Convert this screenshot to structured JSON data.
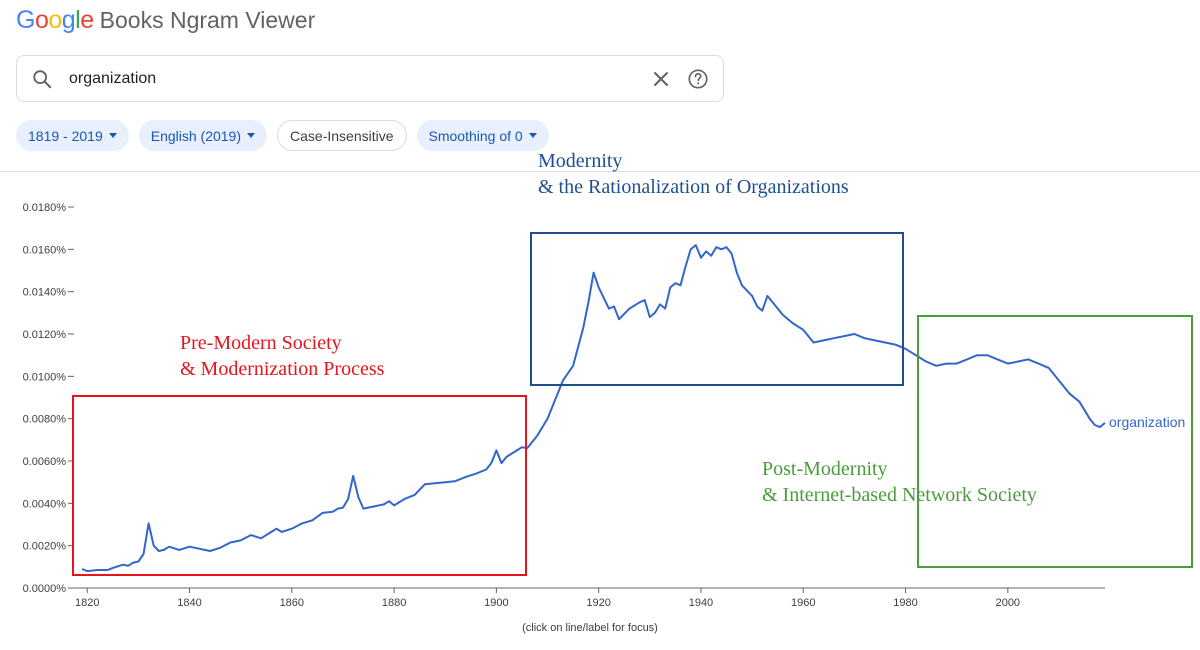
{
  "logo": {
    "letters": [
      {
        "ch": "G",
        "color": "#4285F4"
      },
      {
        "ch": "o",
        "color": "#EA4335"
      },
      {
        "ch": "o",
        "color": "#FBBC05"
      },
      {
        "ch": "g",
        "color": "#4285F4"
      },
      {
        "ch": "l",
        "color": "#34A853"
      },
      {
        "ch": "e",
        "color": "#EA4335"
      }
    ],
    "rest": "Books Ngram Viewer"
  },
  "search": {
    "value": "organization",
    "icon": "search-icon",
    "clear_icon": "close-icon",
    "help_icon": "help-icon"
  },
  "filters": {
    "year_range": "1819 - 2019",
    "corpus": "English (2019)",
    "case": "Case-Insensitive",
    "smoothing": "Smoothing of 0"
  },
  "chart_note": "(click on line/label for focus)",
  "chart_data": {
    "type": "line",
    "xlim": [
      1818,
      2019
    ],
    "ylim": [
      0,
      0.018
    ],
    "x_ticks": [
      1820,
      1840,
      1860,
      1880,
      1900,
      1920,
      1940,
      1960,
      1980,
      2000
    ],
    "y_ticks": [
      {
        "value": 0,
        "label": "0.0000%"
      },
      {
        "value": 0.002,
        "label": "0.0020%"
      },
      {
        "value": 0.004,
        "label": "0.0040%"
      },
      {
        "value": 0.006,
        "label": "0.0060%"
      },
      {
        "value": 0.008,
        "label": "0.0080%"
      },
      {
        "value": 0.01,
        "label": "0.0100%"
      },
      {
        "value": 0.012,
        "label": "0.0120%"
      },
      {
        "value": 0.014,
        "label": "0.0140%"
      },
      {
        "value": 0.016,
        "label": "0.0160%"
      },
      {
        "value": 0.018,
        "label": "0.0180%"
      }
    ],
    "series": [
      {
        "name": "organization",
        "color": "#3366cc",
        "points": [
          [
            1819,
            0.0009
          ],
          [
            1820,
            0.0008
          ],
          [
            1822,
            0.00085
          ],
          [
            1824,
            0.00085
          ],
          [
            1825,
            0.00095
          ],
          [
            1827,
            0.0011
          ],
          [
            1828,
            0.00105
          ],
          [
            1829,
            0.0012
          ],
          [
            1830,
            0.00125
          ],
          [
            1831,
            0.0016
          ],
          [
            1832,
            0.00305
          ],
          [
            1833,
            0.002
          ],
          [
            1834,
            0.00175
          ],
          [
            1835,
            0.0018
          ],
          [
            1836,
            0.00195
          ],
          [
            1838,
            0.0018
          ],
          [
            1840,
            0.00195
          ],
          [
            1842,
            0.00185
          ],
          [
            1844,
            0.00175
          ],
          [
            1846,
            0.0019
          ],
          [
            1848,
            0.00215
          ],
          [
            1850,
            0.00225
          ],
          [
            1852,
            0.0025
          ],
          [
            1854,
            0.00235
          ],
          [
            1856,
            0.00265
          ],
          [
            1857,
            0.0028
          ],
          [
            1858,
            0.00265
          ],
          [
            1860,
            0.0028
          ],
          [
            1862,
            0.00305
          ],
          [
            1864,
            0.0032
          ],
          [
            1866,
            0.00355
          ],
          [
            1868,
            0.0036
          ],
          [
            1869,
            0.00375
          ],
          [
            1870,
            0.0038
          ],
          [
            1871,
            0.0042
          ],
          [
            1872,
            0.0053
          ],
          [
            1873,
            0.0043
          ],
          [
            1874,
            0.00375
          ],
          [
            1876,
            0.00385
          ],
          [
            1878,
            0.00395
          ],
          [
            1879,
            0.0041
          ],
          [
            1880,
            0.0039
          ],
          [
            1882,
            0.0042
          ],
          [
            1884,
            0.0044
          ],
          [
            1886,
            0.0049
          ],
          [
            1888,
            0.00495
          ],
          [
            1890,
            0.005
          ],
          [
            1892,
            0.00505
          ],
          [
            1894,
            0.00525
          ],
          [
            1896,
            0.0054
          ],
          [
            1898,
            0.0056
          ],
          [
            1899,
            0.0059
          ],
          [
            1900,
            0.0065
          ],
          [
            1901,
            0.0059
          ],
          [
            1902,
            0.0062
          ],
          [
            1904,
            0.0065
          ],
          [
            1905,
            0.00665
          ],
          [
            1906,
            0.0066
          ],
          [
            1908,
            0.0072
          ],
          [
            1910,
            0.008
          ],
          [
            1912,
            0.0092
          ],
          [
            1913,
            0.0098
          ],
          [
            1915,
            0.0105
          ],
          [
            1917,
            0.0123
          ],
          [
            1918,
            0.0135
          ],
          [
            1919,
            0.0149
          ],
          [
            1920,
            0.0142
          ],
          [
            1922,
            0.0132
          ],
          [
            1923,
            0.0133
          ],
          [
            1924,
            0.0127
          ],
          [
            1926,
            0.0132
          ],
          [
            1928,
            0.0135
          ],
          [
            1929,
            0.0136
          ],
          [
            1930,
            0.0128
          ],
          [
            1931,
            0.013
          ],
          [
            1932,
            0.0134
          ],
          [
            1933,
            0.0132
          ],
          [
            1934,
            0.0142
          ],
          [
            1935,
            0.0144
          ],
          [
            1936,
            0.0143
          ],
          [
            1937,
            0.0152
          ],
          [
            1938,
            0.016
          ],
          [
            1939,
            0.0162
          ],
          [
            1940,
            0.0156
          ],
          [
            1941,
            0.0159
          ],
          [
            1942,
            0.0157
          ],
          [
            1943,
            0.0161
          ],
          [
            1944,
            0.016
          ],
          [
            1945,
            0.0161
          ],
          [
            1946,
            0.0158
          ],
          [
            1947,
            0.0149
          ],
          [
            1948,
            0.0143
          ],
          [
            1950,
            0.0138
          ],
          [
            1951,
            0.0133
          ],
          [
            1952,
            0.0131
          ],
          [
            1953,
            0.0138
          ],
          [
            1954,
            0.0135
          ],
          [
            1956,
            0.0129
          ],
          [
            1958,
            0.0125
          ],
          [
            1960,
            0.0122
          ],
          [
            1962,
            0.0116
          ],
          [
            1964,
            0.0117
          ],
          [
            1966,
            0.0118
          ],
          [
            1968,
            0.0119
          ],
          [
            1970,
            0.012
          ],
          [
            1972,
            0.0118
          ],
          [
            1974,
            0.0117
          ],
          [
            1976,
            0.0116
          ],
          [
            1978,
            0.0115
          ],
          [
            1980,
            0.0113
          ],
          [
            1982,
            0.011
          ],
          [
            1984,
            0.0107
          ],
          [
            1986,
            0.0105
          ],
          [
            1988,
            0.0106
          ],
          [
            1990,
            0.0106
          ],
          [
            1992,
            0.0108
          ],
          [
            1994,
            0.011
          ],
          [
            1996,
            0.011
          ],
          [
            1998,
            0.0108
          ],
          [
            2000,
            0.0106
          ],
          [
            2002,
            0.0107
          ],
          [
            2004,
            0.0108
          ],
          [
            2006,
            0.0106
          ],
          [
            2008,
            0.0104
          ],
          [
            2010,
            0.0098
          ],
          [
            2012,
            0.0092
          ],
          [
            2014,
            0.0088
          ],
          [
            2016,
            0.008
          ],
          [
            2017,
            0.0077
          ],
          [
            2018,
            0.0076
          ],
          [
            2019,
            0.0078
          ]
        ]
      }
    ],
    "annotations": [
      {
        "lines": [
          "Pre-Modern Society",
          "& Modernization Process"
        ],
        "color": "#e8141d"
      },
      {
        "lines": [
          "Modernity",
          "& the Rationalization of Organizations"
        ],
        "color": "#1f4f8f"
      },
      {
        "lines": [
          "Post-Modernity",
          "& Internet-based Network Society"
        ],
        "color": "#4a9c3c"
      }
    ]
  }
}
